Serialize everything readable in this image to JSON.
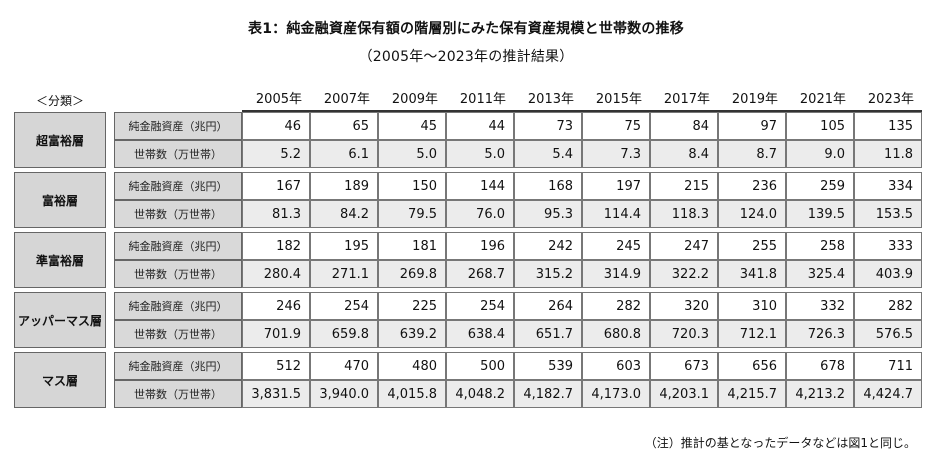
{
  "title": "表1：純金融資産保有額の階層別にみた保有資産規模と世帯数の推移",
  "subtitle": "（2005年〜2023年の推計結果）",
  "header": {
    "classification_label": "＜分類＞",
    "years": [
      "2005年",
      "2007年",
      "2009年",
      "2011年",
      "2013年",
      "2015年",
      "2017年",
      "2019年",
      "2021年",
      "2023年"
    ]
  },
  "row_labels": {
    "assets": "純金融資産（兆円）",
    "households": "世帯数（万世帯）"
  },
  "groups": [
    {
      "name": "超富裕層",
      "assets": [
        "46",
        "65",
        "45",
        "44",
        "73",
        "75",
        "84",
        "97",
        "105",
        "135"
      ],
      "households": [
        "5.2",
        "6.1",
        "5.0",
        "5.0",
        "5.4",
        "7.3",
        "8.4",
        "8.7",
        "9.0",
        "11.8"
      ]
    },
    {
      "name": "富裕層",
      "assets": [
        "167",
        "189",
        "150",
        "144",
        "168",
        "197",
        "215",
        "236",
        "259",
        "334"
      ],
      "households": [
        "81.3",
        "84.2",
        "79.5",
        "76.0",
        "95.3",
        "114.4",
        "118.3",
        "124.0",
        "139.5",
        "153.5"
      ]
    },
    {
      "name": "準富裕層",
      "assets": [
        "182",
        "195",
        "181",
        "196",
        "242",
        "245",
        "247",
        "255",
        "258",
        "333"
      ],
      "households": [
        "280.4",
        "271.1",
        "269.8",
        "268.7",
        "315.2",
        "314.9",
        "322.2",
        "341.8",
        "325.4",
        "403.9"
      ]
    },
    {
      "name": "アッパーマス層",
      "assets": [
        "246",
        "254",
        "225",
        "254",
        "264",
        "282",
        "320",
        "310",
        "332",
        "282"
      ],
      "households": [
        "701.9",
        "659.8",
        "639.2",
        "638.4",
        "651.7",
        "680.8",
        "720.3",
        "712.1",
        "726.3",
        "576.5"
      ]
    },
    {
      "name": "マス層",
      "assets": [
        "512",
        "470",
        "480",
        "500",
        "539",
        "603",
        "673",
        "656",
        "678",
        "711"
      ],
      "households": [
        "3,831.5",
        "3,940.0",
        "4,015.8",
        "4,048.2",
        "4,182.7",
        "4,173.0",
        "4,203.1",
        "4,215.7",
        "4,213.2",
        "4,424.7"
      ]
    }
  ],
  "note": "（注）推計の基となったデータなどは図1と同じ。"
}
